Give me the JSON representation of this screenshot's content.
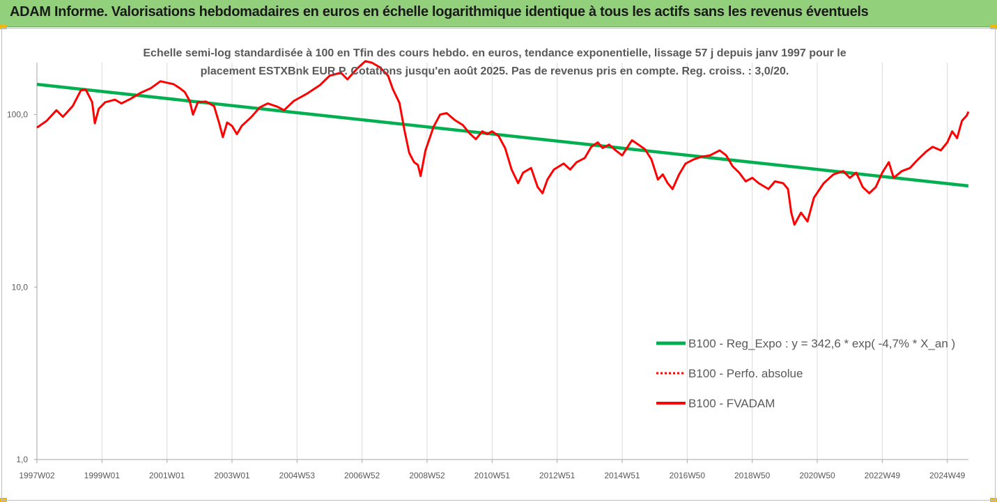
{
  "header": {
    "title": "ADAM Informe. Valorisations hebdomadaires en euros en échelle logarithmique identique à tous les actifs sans les revenus éventuels"
  },
  "colors": {
    "header_bg": "#92d07c",
    "trend_line": "#00b050",
    "price_line": "#ff0000",
    "axis_text": "#595959"
  },
  "chart_data": {
    "type": "line",
    "title_line1": "Echelle semi-log standardisée à 100 en Tfin des cours hebdo. en euros, tendance exponentielle, lissage 57 j depuis janv 1997 pour le",
    "title_line2": "placement ESTXBnk EUR P. Cotations jusqu'en août 2025. Pas de revenus pris en compte. Reg. croiss. : 3,0/20.",
    "y_scale": "log",
    "ylim": [
      1,
      200
    ],
    "y_ticks": [
      {
        "value": 1,
        "label": "1,0"
      },
      {
        "value": 10,
        "label": "10,0"
      },
      {
        "value": 100,
        "label": "100,0"
      }
    ],
    "x_range": [
      1997.0,
      2025.65
    ],
    "x_ticks": [
      {
        "x": 1997.0,
        "label": "1997W02"
      },
      {
        "x": 1999.0,
        "label": "1999W01"
      },
      {
        "x": 2001.0,
        "label": "2001W01"
      },
      {
        "x": 2003.0,
        "label": "2003W01"
      },
      {
        "x": 2005.0,
        "label": "2004W53"
      },
      {
        "x": 2007.0,
        "label": "2006W52"
      },
      {
        "x": 2009.0,
        "label": "2008W52"
      },
      {
        "x": 2011.0,
        "label": "2010W51"
      },
      {
        "x": 2013.0,
        "label": "2012W51"
      },
      {
        "x": 2015.0,
        "label": "2014W51"
      },
      {
        "x": 2017.0,
        "label": "2016W50"
      },
      {
        "x": 2019.0,
        "label": "2018W50"
      },
      {
        "x": 2021.0,
        "label": "2020W50"
      },
      {
        "x": 2023.0,
        "label": "2022W49"
      },
      {
        "x": 2025.0,
        "label": "2024W49"
      }
    ],
    "legend_position": "right",
    "series": [
      {
        "name": "B100 - Reg_Expo : y = 342,6 * exp( -4,7% *  X_an )",
        "style": "solid-thick",
        "color": "#00b050",
        "points": [
          [
            1997.0,
            149.7
          ],
          [
            2025.65,
            38.6
          ]
        ]
      },
      {
        "name": "B100 - Perfo. absolue",
        "style": "dotted",
        "color": "#ff0000",
        "points": []
      },
      {
        "name": "B100 - FVADAM",
        "style": "solid",
        "color": "#ff0000",
        "points": [
          [
            1997.0,
            84
          ],
          [
            1997.3,
            92
          ],
          [
            1997.6,
            106
          ],
          [
            1997.8,
            97
          ],
          [
            1998.1,
            112
          ],
          [
            1998.35,
            138
          ],
          [
            1998.5,
            140
          ],
          [
            1998.7,
            118
          ],
          [
            1998.78,
            89
          ],
          [
            1998.9,
            108
          ],
          [
            1999.1,
            118
          ],
          [
            1999.4,
            122
          ],
          [
            1999.6,
            116
          ],
          [
            1999.9,
            124
          ],
          [
            2000.2,
            134
          ],
          [
            2000.5,
            142
          ],
          [
            2000.8,
            156
          ],
          [
            2001.0,
            153
          ],
          [
            2001.2,
            150
          ],
          [
            2001.4,
            142
          ],
          [
            2001.55,
            135
          ],
          [
            2001.7,
            120
          ],
          [
            2001.8,
            100
          ],
          [
            2001.95,
            118
          ],
          [
            2002.2,
            119
          ],
          [
            2002.45,
            112
          ],
          [
            2002.6,
            90
          ],
          [
            2002.72,
            74
          ],
          [
            2002.85,
            90
          ],
          [
            2003.0,
            86
          ],
          [
            2003.15,
            77
          ],
          [
            2003.3,
            86
          ],
          [
            2003.6,
            97
          ],
          [
            2003.85,
            110
          ],
          [
            2004.1,
            116
          ],
          [
            2004.4,
            111
          ],
          [
            2004.6,
            106
          ],
          [
            2004.9,
            120
          ],
          [
            2005.3,
            132
          ],
          [
            2005.7,
            148
          ],
          [
            2006.0,
            168
          ],
          [
            2006.35,
            175
          ],
          [
            2006.55,
            160
          ],
          [
            2006.85,
            185
          ],
          [
            2007.1,
            204
          ],
          [
            2007.3,
            200
          ],
          [
            2007.55,
            188
          ],
          [
            2007.8,
            168
          ],
          [
            2007.95,
            140
          ],
          [
            2008.15,
            117
          ],
          [
            2008.3,
            82
          ],
          [
            2008.45,
            60
          ],
          [
            2008.6,
            53
          ],
          [
            2008.72,
            51
          ],
          [
            2008.8,
            44
          ],
          [
            2008.95,
            62
          ],
          [
            2009.2,
            85
          ],
          [
            2009.4,
            100
          ],
          [
            2009.6,
            102
          ],
          [
            2009.85,
            93
          ],
          [
            2010.1,
            87
          ],
          [
            2010.3,
            78
          ],
          [
            2010.5,
            72
          ],
          [
            2010.7,
            80
          ],
          [
            2010.85,
            77
          ],
          [
            2011.0,
            80
          ],
          [
            2011.2,
            75
          ],
          [
            2011.4,
            64
          ],
          [
            2011.6,
            48
          ],
          [
            2011.8,
            40
          ],
          [
            2011.95,
            46
          ],
          [
            2012.2,
            49
          ],
          [
            2012.4,
            38
          ],
          [
            2012.55,
            35
          ],
          [
            2012.7,
            42
          ],
          [
            2012.9,
            48
          ],
          [
            2013.2,
            52
          ],
          [
            2013.4,
            48
          ],
          [
            2013.6,
            53
          ],
          [
            2013.85,
            56
          ],
          [
            2014.05,
            65
          ],
          [
            2014.25,
            69
          ],
          [
            2014.4,
            64
          ],
          [
            2014.6,
            67
          ],
          [
            2014.8,
            62
          ],
          [
            2015.0,
            58
          ],
          [
            2015.3,
            71
          ],
          [
            2015.5,
            67
          ],
          [
            2015.7,
            63
          ],
          [
            2015.9,
            55
          ],
          [
            2016.1,
            42
          ],
          [
            2016.25,
            45
          ],
          [
            2016.4,
            40
          ],
          [
            2016.55,
            37
          ],
          [
            2016.75,
            45
          ],
          [
            2016.95,
            52
          ],
          [
            2017.2,
            55
          ],
          [
            2017.45,
            57
          ],
          [
            2017.7,
            58
          ],
          [
            2018.0,
            62
          ],
          [
            2018.2,
            58
          ],
          [
            2018.4,
            50
          ],
          [
            2018.6,
            46
          ],
          [
            2018.8,
            41
          ],
          [
            2019.0,
            43
          ],
          [
            2019.2,
            40
          ],
          [
            2019.5,
            37
          ],
          [
            2019.7,
            41
          ],
          [
            2019.95,
            40
          ],
          [
            2020.1,
            37
          ],
          [
            2020.2,
            27
          ],
          [
            2020.3,
            23
          ],
          [
            2020.5,
            27
          ],
          [
            2020.7,
            24
          ],
          [
            2020.9,
            33
          ],
          [
            2021.2,
            40
          ],
          [
            2021.5,
            45
          ],
          [
            2021.8,
            47
          ],
          [
            2022.0,
            43
          ],
          [
            2022.2,
            46
          ],
          [
            2022.4,
            38
          ],
          [
            2022.6,
            35
          ],
          [
            2022.8,
            38
          ],
          [
            2023.0,
            46
          ],
          [
            2023.2,
            53
          ],
          [
            2023.35,
            43
          ],
          [
            2023.6,
            47
          ],
          [
            2023.85,
            49
          ],
          [
            2024.1,
            55
          ],
          [
            2024.35,
            61
          ],
          [
            2024.55,
            65
          ],
          [
            2024.8,
            62
          ],
          [
            2025.0,
            69
          ],
          [
            2025.15,
            80
          ],
          [
            2025.3,
            73
          ],
          [
            2025.45,
            92
          ],
          [
            2025.6,
            99
          ],
          [
            2025.65,
            104
          ]
        ]
      }
    ]
  }
}
